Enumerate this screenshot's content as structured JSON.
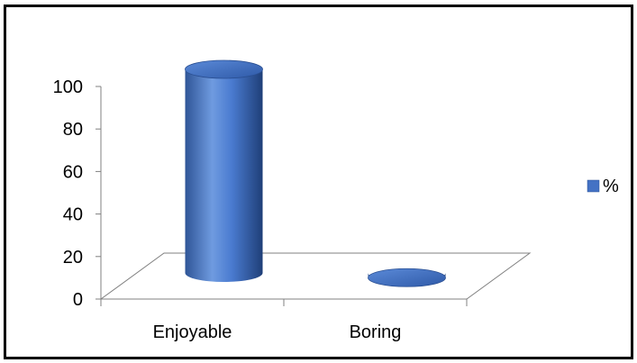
{
  "chart_data": {
    "type": "bar",
    "style": "3d-cylinder",
    "categories": [
      "Enjoyable",
      "Boring"
    ],
    "series": [
      {
        "name": "%",
        "values": [
          100,
          2
        ],
        "color": "#4472C4"
      }
    ],
    "ylim": [
      0,
      100
    ],
    "yticks": [
      0,
      20,
      40,
      60,
      80,
      100
    ],
    "legend": {
      "placement": "right"
    },
    "grid": false
  }
}
